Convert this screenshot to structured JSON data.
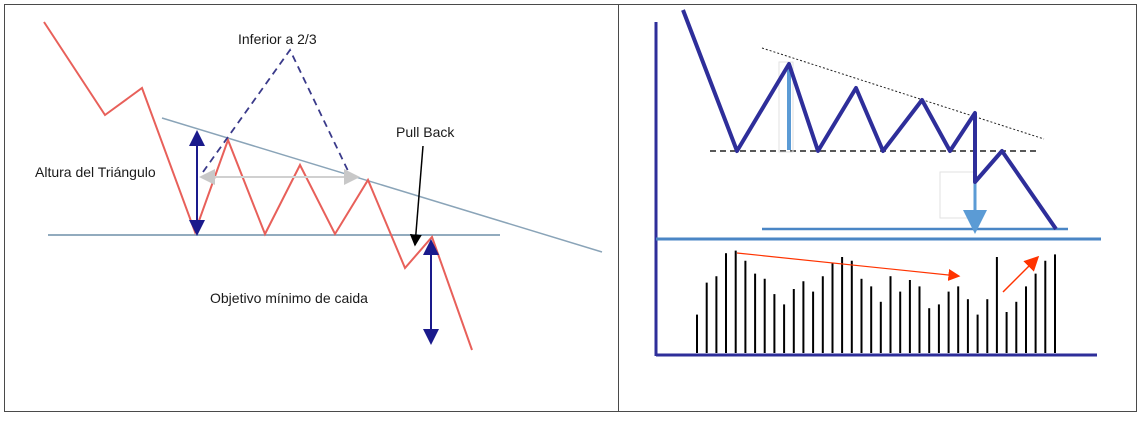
{
  "left_panel": {
    "labels": {
      "inferior": "Inferior a 2/3",
      "altura": "Altura del Triángulo",
      "pullback": "Pull Back",
      "objetivo": "Objetivo mínimo de caida"
    },
    "colors": {
      "price": "#e8605a",
      "lines": "#6e8fa8",
      "arrows": "#1a1a8c",
      "dashed": "#3a3a8a"
    }
  },
  "right_panel": {
    "colors": {
      "price": "#2e2e9a",
      "axis": "#2e2e9a",
      "measure": "#5b9bd5",
      "volume": "#000000",
      "trend": "#ff3300"
    },
    "volume_levels": [
      0.3,
      0.55,
      0.6,
      0.78,
      0.8,
      0.72,
      0.62,
      0.58,
      0.46,
      0.38,
      0.5,
      0.56,
      0.48,
      0.6,
      0.7,
      0.75,
      0.72,
      0.58,
      0.52,
      0.4,
      0.6,
      0.48,
      0.57,
      0.52,
      0.35,
      0.38,
      0.48,
      0.52,
      0.42,
      0.3,
      0.42,
      0.75,
      0.32,
      0.4,
      0.52,
      0.62,
      0.72,
      0.77
    ]
  }
}
